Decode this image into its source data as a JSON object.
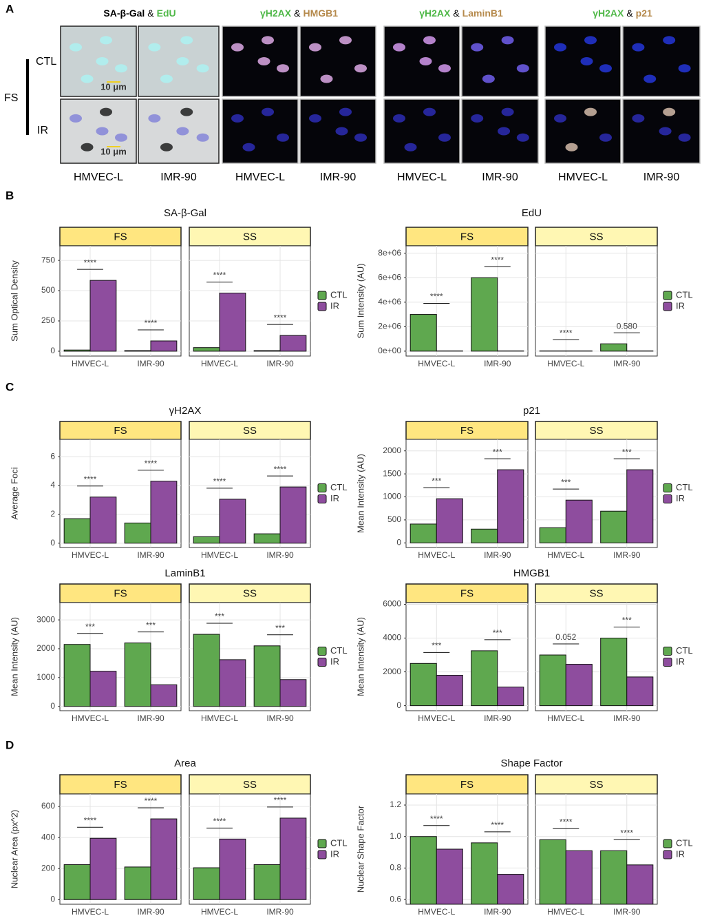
{
  "panel_a": {
    "letter": "A",
    "headers": [
      [
        "SA-β-Gal",
        "&",
        "EdU"
      ],
      [
        "γH2AX",
        "&",
        "HMGB1"
      ],
      [
        "γH2AX",
        "&",
        "LaminB1"
      ],
      [
        "γH2AX",
        "&",
        "p21"
      ]
    ],
    "cells": [
      "HMVEC-L",
      "IMR-90"
    ],
    "rows": [
      "CTL",
      "IR"
    ],
    "group_label": "FS",
    "scale_bar": "10 μm"
  },
  "section_letters": [
    "B",
    "C",
    "D"
  ],
  "chart_data": [
    {
      "type": "bar",
      "title": "SA-β-Gal",
      "ylabel": "Sum Optical Density",
      "facets": [
        "FS",
        "SS"
      ],
      "categories": [
        "HMVEC-L",
        "IMR-90",
        "HMVEC-L",
        "IMR-90"
      ],
      "series": [
        {
          "name": "CTL",
          "color": "#5fa84f",
          "values": [
            10,
            5,
            30,
            5
          ]
        },
        {
          "name": "IR",
          "color": "#8e4d9e",
          "values": [
            585,
            85,
            480,
            130
          ]
        }
      ],
      "annotations": [
        "****",
        "****",
        "****",
        "****"
      ],
      "ylim": [
        -40,
        870
      ],
      "yticks": [
        0,
        250,
        500,
        750
      ],
      "grid": true
    },
    {
      "type": "bar",
      "title": "EdU",
      "ylabel": "Sum Intensity (AU)",
      "facets": [
        "FS",
        "SS"
      ],
      "categories": [
        "HMVEC-L",
        "IMR-90",
        "HMVEC-L",
        "IMR-90"
      ],
      "series": [
        {
          "name": "CTL",
          "color": "#5fa84f",
          "values": [
            3000000,
            6000000,
            20000,
            600000
          ]
        },
        {
          "name": "IR",
          "color": "#8e4d9e",
          "values": [
            20000,
            20000,
            20000,
            20000
          ]
        }
      ],
      "annotations": [
        "****",
        "****",
        "****",
        "0.580"
      ],
      "ylim": [
        -400000,
        8600000
      ],
      "yticks": [
        {
          "value": 0,
          "label": "0e+00"
        },
        {
          "value": 2000000,
          "label": "2e+06"
        },
        {
          "value": 4000000,
          "label": "4e+06"
        },
        {
          "value": 6000000,
          "label": "6e+06"
        },
        {
          "value": 8000000,
          "label": "8e+06"
        }
      ],
      "grid": true
    },
    {
      "type": "bar",
      "title": "γH2AX",
      "ylabel": "Average Foci",
      "facets": [
        "FS",
        "SS"
      ],
      "categories": [
        "HMVEC-L",
        "IMR-90",
        "HMVEC-L",
        "IMR-90"
      ],
      "series": [
        {
          "name": "CTL",
          "color": "#5fa84f",
          "values": [
            1.7,
            1.4,
            0.45,
            0.65
          ]
        },
        {
          "name": "IR",
          "color": "#8e4d9e",
          "values": [
            3.2,
            4.3,
            3.05,
            3.9
          ]
        }
      ],
      "annotations": [
        "****",
        "****",
        "****",
        "****"
      ],
      "ylim": [
        -0.3,
        7.2
      ],
      "yticks": [
        0,
        2,
        4,
        6
      ],
      "grid": true
    },
    {
      "type": "bar",
      "title": "p21",
      "ylabel": "Mean Intensity (AU)",
      "facets": [
        "FS",
        "SS"
      ],
      "categories": [
        "HMVEC-L",
        "IMR-90",
        "HMVEC-L",
        "IMR-90"
      ],
      "series": [
        {
          "name": "CTL",
          "color": "#5fa84f",
          "values": [
            410,
            300,
            330,
            690
          ]
        },
        {
          "name": "IR",
          "color": "#8e4d9e",
          "values": [
            960,
            1590,
            930,
            1590
          ]
        }
      ],
      "annotations": [
        "***",
        "***",
        "***",
        "***"
      ],
      "ylim": [
        -100,
        2250
      ],
      "yticks": [
        0,
        500,
        1000,
        1500,
        2000
      ],
      "grid": true
    },
    {
      "type": "bar",
      "title": "LaminB1",
      "ylabel": "Mean Intensity (AU)",
      "facets": [
        "FS",
        "SS"
      ],
      "categories": [
        "HMVEC-L",
        "IMR-90",
        "HMVEC-L",
        "IMR-90"
      ],
      "series": [
        {
          "name": "CTL",
          "color": "#5fa84f",
          "values": [
            2150,
            2200,
            2500,
            2100
          ]
        },
        {
          "name": "IR",
          "color": "#8e4d9e",
          "values": [
            1220,
            750,
            1620,
            930
          ]
        }
      ],
      "annotations": [
        "***",
        "***",
        "***",
        "***"
      ],
      "ylim": [
        -150,
        3600
      ],
      "yticks": [
        0,
        1000,
        2000,
        3000
      ],
      "grid": true
    },
    {
      "type": "bar",
      "title": "HMGB1",
      "ylabel": "Mean Intensity (AU)",
      "facets": [
        "FS",
        "SS"
      ],
      "categories": [
        "HMVEC-L",
        "IMR-90",
        "HMVEC-L",
        "IMR-90"
      ],
      "series": [
        {
          "name": "CTL",
          "color": "#5fa84f",
          "values": [
            2500,
            3250,
            3000,
            4000
          ]
        },
        {
          "name": "IR",
          "color": "#8e4d9e",
          "values": [
            1800,
            1100,
            2450,
            1700
          ]
        }
      ],
      "annotations": [
        "***",
        "***",
        "0.052",
        "***"
      ],
      "ylim": [
        -300,
        6100
      ],
      "yticks": [
        0,
        2000,
        4000,
        6000
      ],
      "grid": true
    },
    {
      "type": "bar",
      "title": "Area",
      "ylabel": "Nuclear Area (px^2)",
      "facets": [
        "FS",
        "SS"
      ],
      "categories": [
        "HMVEC-L",
        "IMR-90",
        "HMVEC-L",
        "IMR-90"
      ],
      "series": [
        {
          "name": "CTL",
          "color": "#5fa84f",
          "values": [
            225,
            210,
            205,
            225
          ]
        },
        {
          "name": "IR",
          "color": "#8e4d9e",
          "values": [
            395,
            520,
            390,
            525
          ]
        }
      ],
      "annotations": [
        "****",
        "****",
        "****",
        "****"
      ],
      "ylim": [
        -30,
        680
      ],
      "yticks": [
        0,
        200,
        400,
        600
      ],
      "grid": true
    },
    {
      "type": "bar",
      "title": "Shape Factor",
      "ylabel": "Nuclear Shape Factor",
      "facets": [
        "FS",
        "SS"
      ],
      "categories": [
        "HMVEC-L",
        "IMR-90",
        "HMVEC-L",
        "IMR-90"
      ],
      "series": [
        {
          "name": "CTL",
          "color": "#5fa84f",
          "values": [
            1.0,
            0.96,
            0.98,
            0.91
          ]
        },
        {
          "name": "IR",
          "color": "#8e4d9e",
          "values": [
            0.92,
            0.76,
            0.91,
            0.82
          ]
        }
      ],
      "annotations": [
        "****",
        "****",
        "****",
        "****"
      ],
      "ylim": [
        0.57,
        1.27
      ],
      "yticks": [
        0.6,
        0.8,
        {
          "value": 1,
          "label": "1.0"
        },
        1.2
      ],
      "grid": true
    }
  ]
}
